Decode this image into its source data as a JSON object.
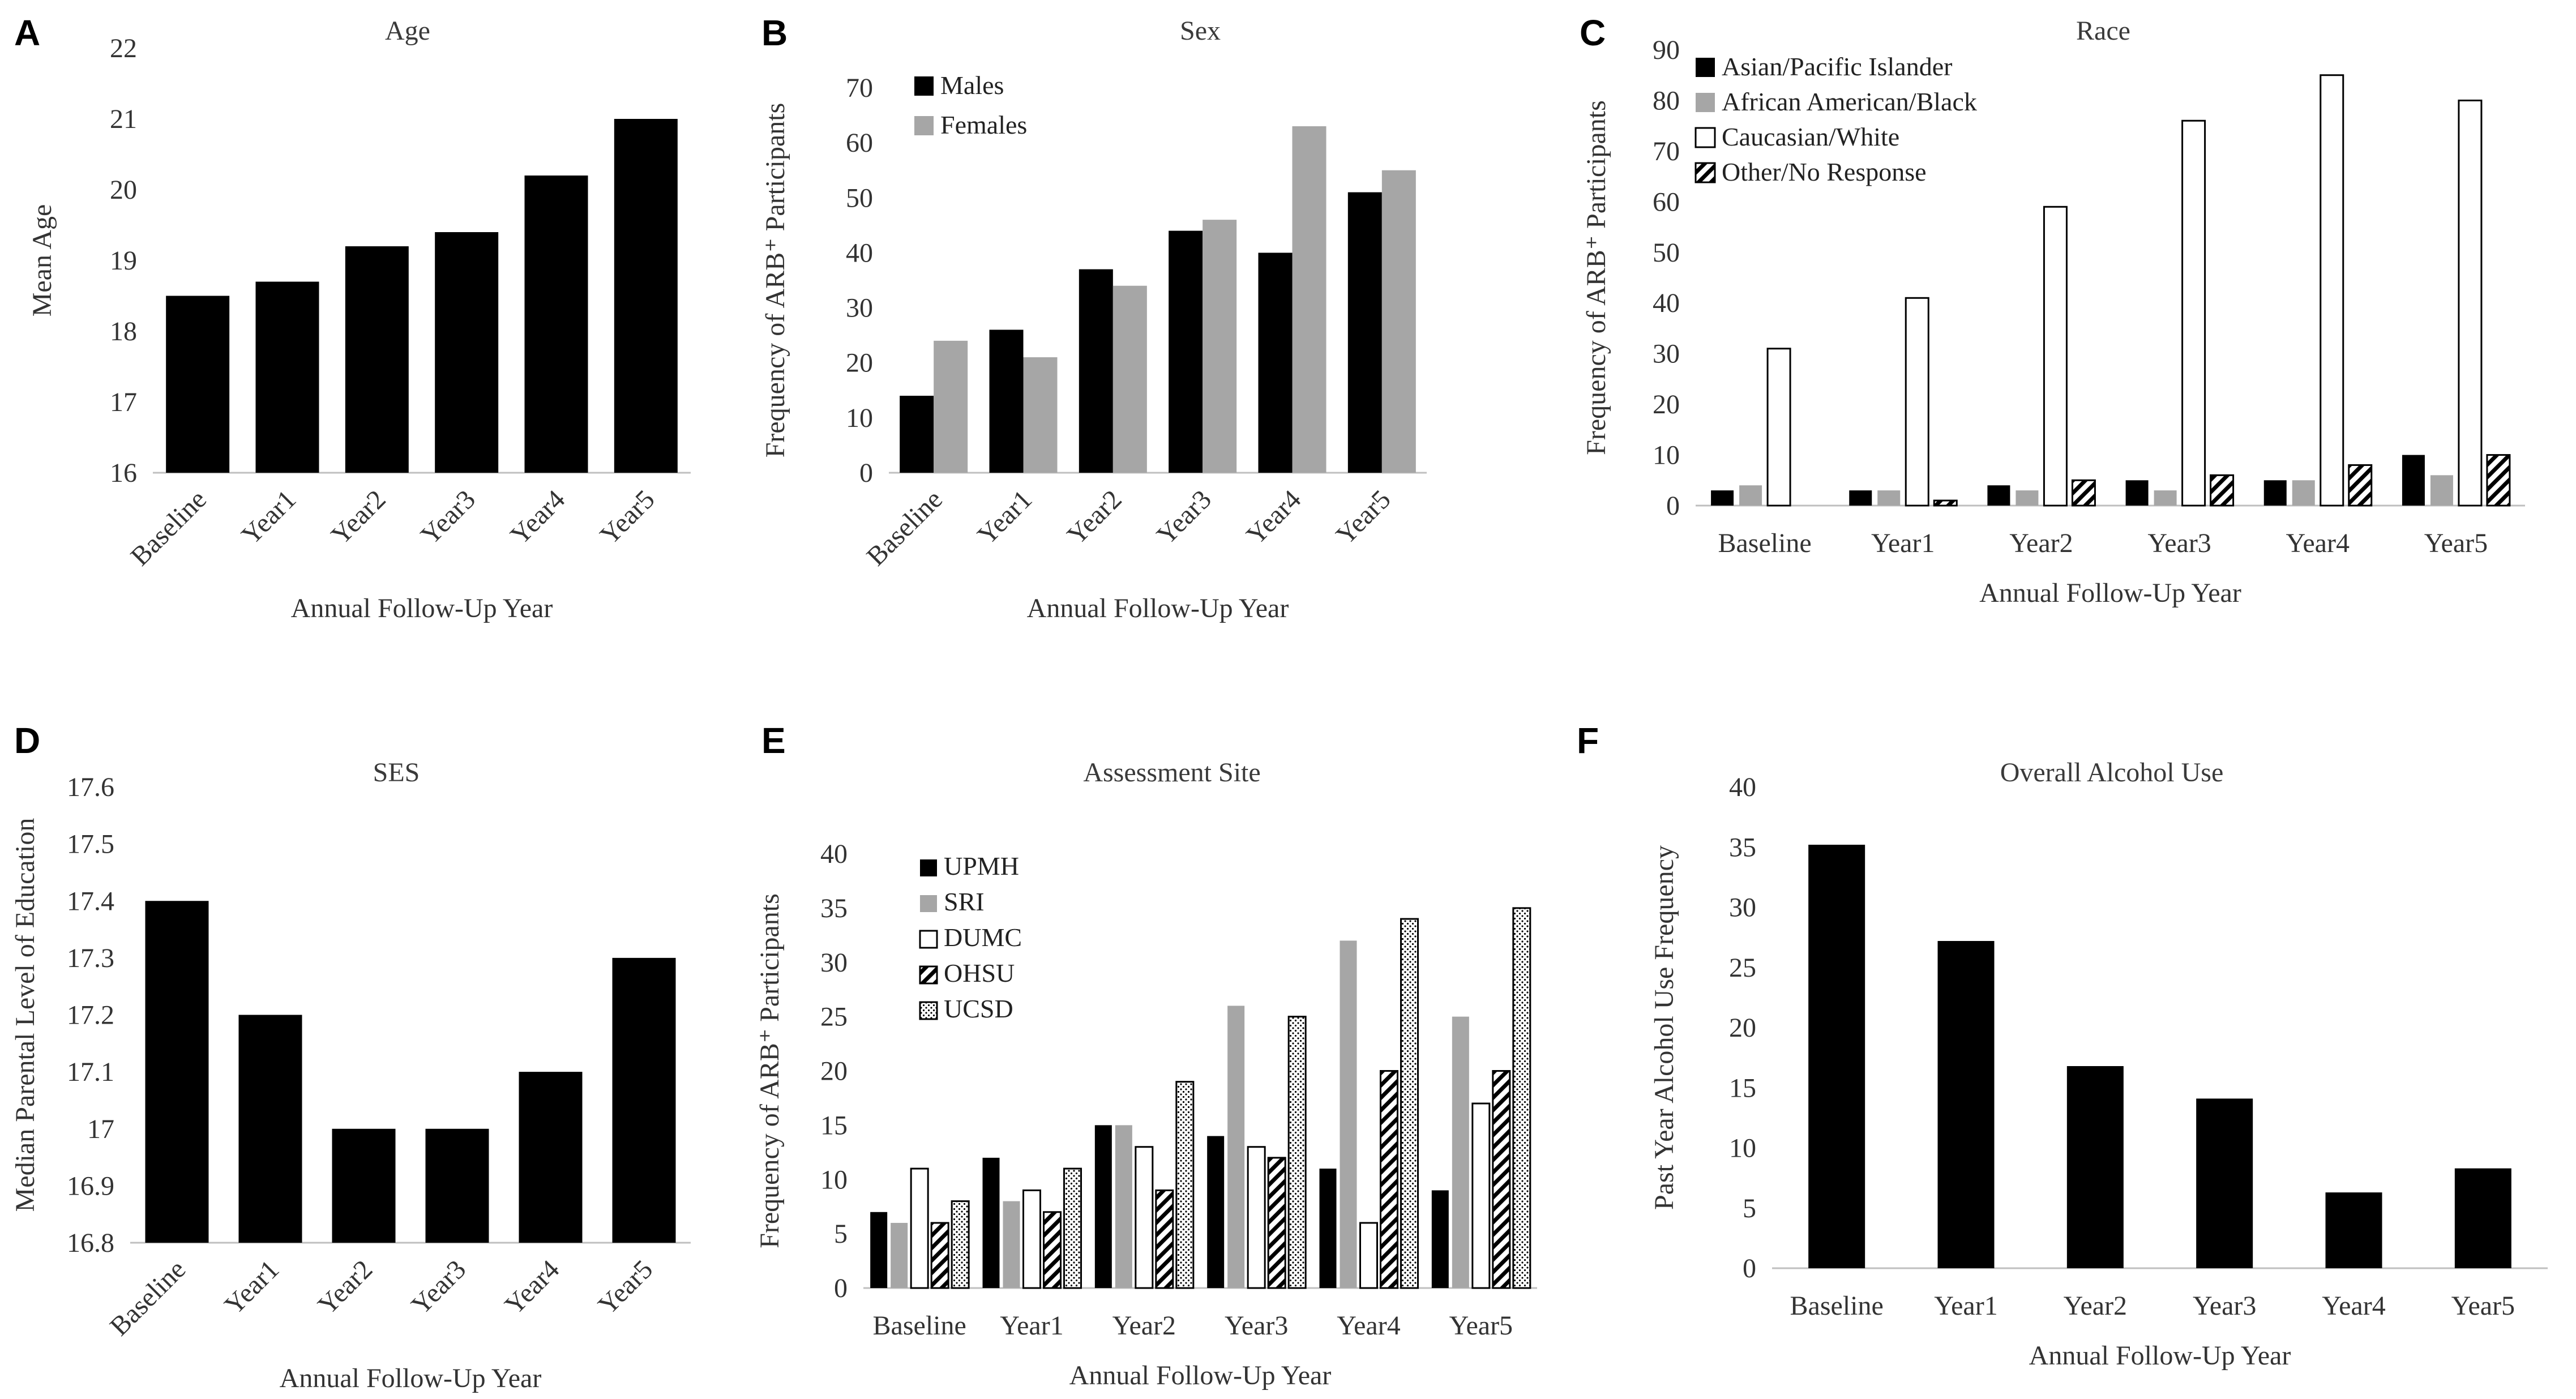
{
  "chart_data": [
    {
      "panel": "A",
      "type": "bar",
      "title": "Age",
      "xlabel": "Annual Follow-Up Year",
      "ylabel": "Mean Age",
      "categories": [
        "Baseline",
        "Year1",
        "Year2",
        "Year3",
        "Year4",
        "Year5"
      ],
      "ylim": [
        16,
        22
      ],
      "yticks": [
        "16",
        "17",
        "18",
        "19",
        "20",
        "21",
        "22"
      ],
      "series": [
        {
          "name": "Mean Age",
          "color": "#000000",
          "pattern": "solid",
          "values": [
            18.5,
            18.7,
            19.2,
            19.4,
            20.2,
            21.0
          ]
        }
      ],
      "rotated_ticks": true,
      "show_legend": false
    },
    {
      "panel": "B",
      "type": "bar",
      "title": "Sex",
      "xlabel": "Annual Follow-Up Year",
      "ylabel": "Frequency of ARB⁺ Participants",
      "categories": [
        "Baseline",
        "Year1",
        "Year2",
        "Year3",
        "Year4",
        "Year5"
      ],
      "ylim": [
        0,
        70
      ],
      "yticks": [
        "0",
        "10",
        "20",
        "30",
        "40",
        "50",
        "60",
        "70"
      ],
      "series": [
        {
          "name": "Males",
          "color": "#000000",
          "pattern": "solid",
          "values": [
            14,
            26,
            37,
            44,
            40,
            51
          ]
        },
        {
          "name": "Females",
          "color": "#a6a6a6",
          "pattern": "solid",
          "values": [
            24,
            21,
            34,
            46,
            63,
            55
          ]
        }
      ],
      "rotated_ticks": true,
      "show_legend": true
    },
    {
      "panel": "C",
      "type": "bar",
      "title": "Race",
      "xlabel": "Annual Follow-Up Year",
      "ylabel": "Frequency of ARB⁺ Participants",
      "categories": [
        "Baseline",
        "Year1",
        "Year2",
        "Year3",
        "Year4",
        "Year5"
      ],
      "ylim": [
        0,
        90
      ],
      "yticks": [
        "0",
        "10",
        "20",
        "30",
        "40",
        "50",
        "60",
        "70",
        "80",
        "90"
      ],
      "series": [
        {
          "name": "Asian/Pacific Islander",
          "color": "#000000",
          "pattern": "solid",
          "values": [
            3,
            3,
            4,
            5,
            5,
            10
          ]
        },
        {
          "name": "African American/Black",
          "color": "#a6a6a6",
          "pattern": "solid",
          "values": [
            4,
            3,
            3,
            3,
            5,
            6
          ]
        },
        {
          "name": "Caucasian/White",
          "color": "#ffffff",
          "pattern": "hollow",
          "values": [
            31,
            41,
            59,
            76,
            85,
            80
          ]
        },
        {
          "name": "Other/No Response",
          "color": "#000000",
          "pattern": "diagonal",
          "values": [
            0,
            1,
            5,
            6,
            8,
            10
          ]
        }
      ],
      "rotated_ticks": false,
      "show_legend": true
    },
    {
      "panel": "D",
      "type": "bar",
      "title": "SES",
      "xlabel": "Annual Follow-Up Year",
      "ylabel": "Median Parental Level of Education",
      "categories": [
        "Baseline",
        "Year1",
        "Year2",
        "Year3",
        "Year4",
        "Year5"
      ],
      "ylim": [
        16.8,
        17.6
      ],
      "yticks": [
        "16.8",
        "16.9",
        "17",
        "17.1",
        "17.2",
        "17.3",
        "17.4",
        "17.5",
        "17.6"
      ],
      "series": [
        {
          "name": "Median Parental Level of Education",
          "color": "#000000",
          "pattern": "solid",
          "values": [
            17.4,
            17.2,
            17.0,
            17.0,
            17.1,
            17.3
          ]
        }
      ],
      "rotated_ticks": true,
      "show_legend": false
    },
    {
      "panel": "E",
      "type": "bar",
      "title": "Assessment Site",
      "xlabel": "Annual Follow-Up Year",
      "ylabel": "Frequency of ARB⁺ Participants",
      "categories": [
        "Baseline",
        "Year1",
        "Year2",
        "Year3",
        "Year4",
        "Year5"
      ],
      "ylim": [
        0,
        40
      ],
      "yticks": [
        "0",
        "5",
        "10",
        "15",
        "20",
        "25",
        "30",
        "35",
        "40"
      ],
      "series": [
        {
          "name": "UPMH",
          "color": "#000000",
          "pattern": "solid",
          "values": [
            7,
            12,
            15,
            14,
            11,
            9
          ]
        },
        {
          "name": "SRI",
          "color": "#a6a6a6",
          "pattern": "solid",
          "values": [
            6,
            8,
            15,
            26,
            32,
            25
          ]
        },
        {
          "name": "DUMC",
          "color": "#ffffff",
          "pattern": "hollow",
          "values": [
            11,
            9,
            13,
            13,
            6,
            17
          ]
        },
        {
          "name": "OHSU",
          "color": "#000000",
          "pattern": "diagonal",
          "values": [
            6,
            7,
            9,
            12,
            20,
            20
          ]
        },
        {
          "name": "UCSD",
          "color": "#000000",
          "pattern": "dots",
          "values": [
            8,
            11,
            19,
            25,
            34,
            35
          ]
        }
      ],
      "rotated_ticks": false,
      "show_legend": true
    },
    {
      "panel": "F",
      "type": "bar",
      "title": "Overall Alcohol Use",
      "xlabel": "Annual Follow-Up Year",
      "ylabel": "Past Year Alcohol Use Frequency",
      "categories": [
        "Baseline",
        "Year1",
        "Year2",
        "Year3",
        "Year4",
        "Year5"
      ],
      "ylim": [
        0,
        40
      ],
      "yticks": [
        "0",
        "5",
        "10",
        "15",
        "20",
        "25",
        "30",
        "35",
        "40"
      ],
      "series": [
        {
          "name": "Past Year Alcohol Use Frequency",
          "color": "#000000",
          "pattern": "solid",
          "values": [
            35.2,
            27.2,
            16.8,
            14.1,
            6.3,
            8.3
          ]
        }
      ],
      "rotated_ticks": false,
      "show_legend": false
    }
  ]
}
